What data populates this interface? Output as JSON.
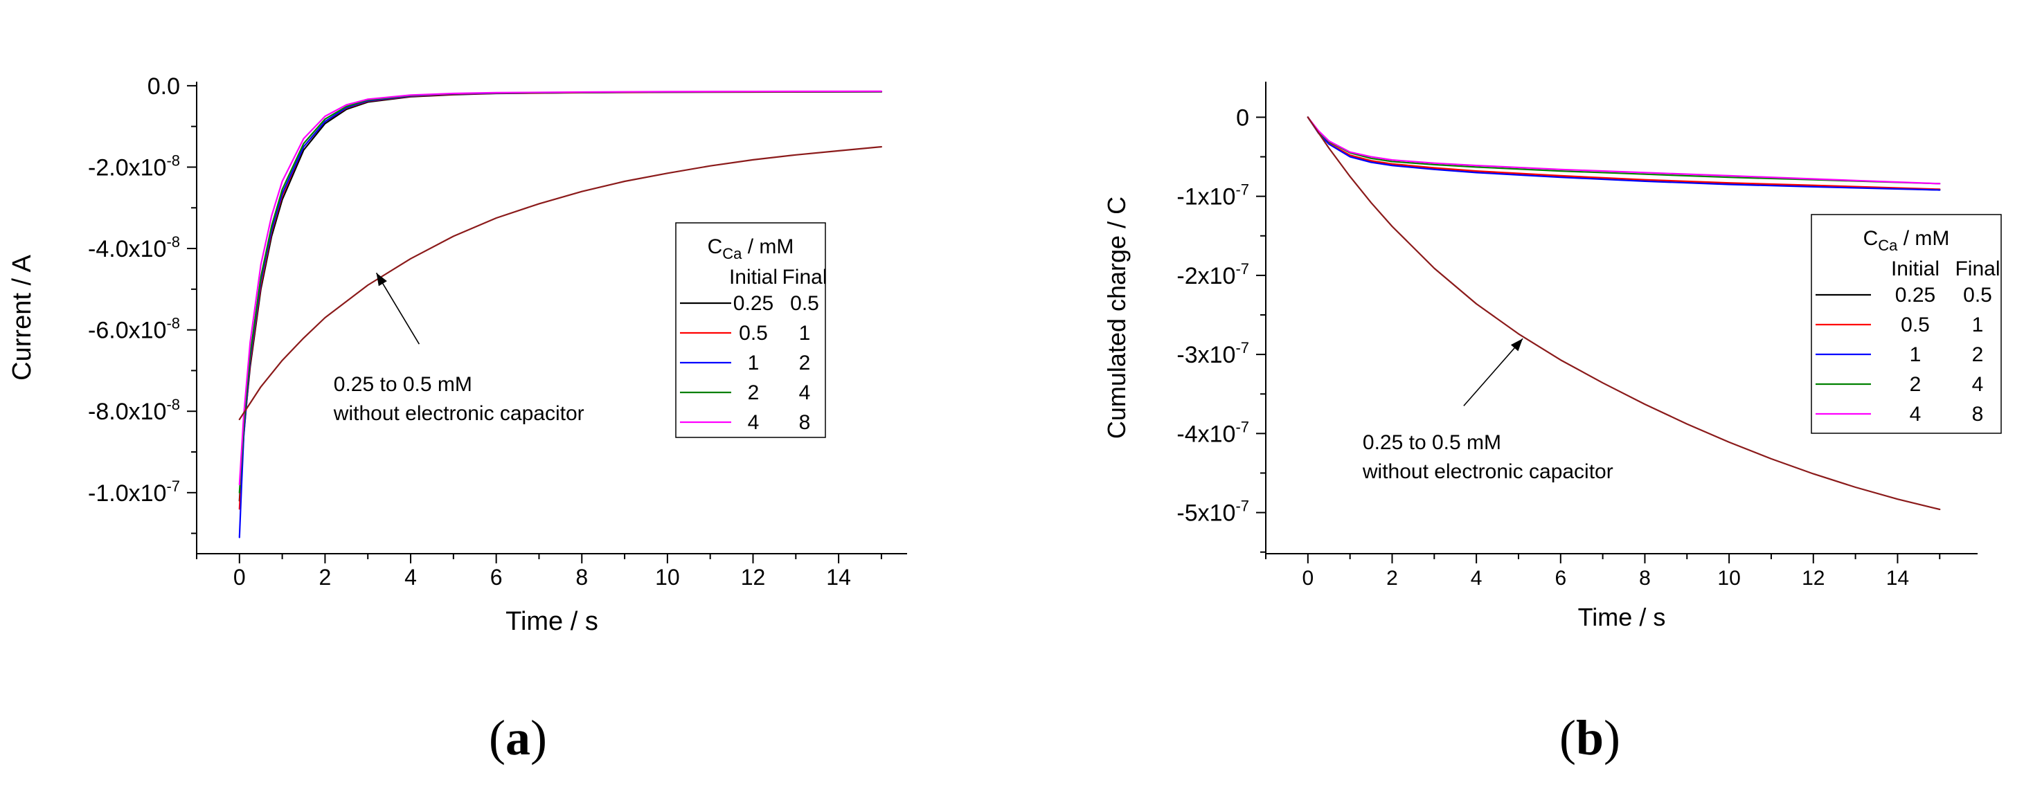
{
  "chart_data": [
    {
      "type": "line",
      "panel_label": "a",
      "xlabel": "Time / s",
      "ylabel": "Current / A",
      "xlim": [
        -1,
        15.6
      ],
      "ylim": [
        -1.15e-07,
        1e-09
      ],
      "x_ticks": [
        0,
        2,
        4,
        6,
        8,
        10,
        12,
        14
      ],
      "x_tick_labels": [
        "0",
        "2",
        "4",
        "6",
        "8",
        "10",
        "12",
        "14"
      ],
      "y_ticks": [
        0,
        -2e-08,
        -4e-08,
        -6e-08,
        -8e-08,
        -1e-07
      ],
      "y_tick_labels": [
        {
          "mantissa": "0.0",
          "exp": ""
        },
        {
          "mantissa": "-2.0x10",
          "exp": "-8"
        },
        {
          "mantissa": "-4.0x10",
          "exp": "-8"
        },
        {
          "mantissa": "-6.0x10",
          "exp": "-8"
        },
        {
          "mantissa": "-8.0x10",
          "exp": "-8"
        },
        {
          "mantissa": "-1.0x10",
          "exp": "-7"
        }
      ],
      "legend": {
        "position": "right",
        "title_main": "C",
        "title_sub": "Ca",
        "title_rest": " / mM",
        "col_initial": "Initial",
        "col_final": "Final",
        "entries": [
          {
            "initial": "0.25",
            "final": "0.5",
            "color": "#000000"
          },
          {
            "initial": "0.5",
            "final": "1",
            "color": "#ff0000"
          },
          {
            "initial": "1",
            "final": "2",
            "color": "#0000ff"
          },
          {
            "initial": "2",
            "final": "4",
            "color": "#008000"
          },
          {
            "initial": "4",
            "final": "8",
            "color": "#ff00ff"
          }
        ]
      },
      "annotation": {
        "line1": "0.25 to 0.5 mM",
        "line2": "without electronic capacitor",
        "arrow_from": [
          4.2,
          -6.35e-08
        ],
        "arrow_to": [
          3.2,
          -4.6e-08
        ],
        "text_at": [
          2.2,
          -7.5e-08
        ]
      },
      "series": [
        {
          "name": "0.25 to 0.5",
          "color": "#000000",
          "x": [
            0.0,
            0.1,
            0.25,
            0.5,
            0.75,
            1.0,
            1.5,
            2.0,
            2.5,
            3.0,
            4.0,
            5.0,
            6.0,
            8.0,
            10.0,
            12.0,
            15.0
          ],
          "y": [
            -1.02e-07,
            -8.5e-08,
            -6.9e-08,
            -5e-08,
            -3.7e-08,
            -2.8e-08,
            -1.58e-08,
            -9.3e-09,
            -5.8e-09,
            -4e-09,
            -2.7e-09,
            -2.2e-09,
            -1.9e-09,
            -1.7e-09,
            -1.6e-09,
            -1.55e-09,
            -1.5e-09
          ]
        },
        {
          "name": "0.5 to 1",
          "color": "#ff0000",
          "x": [
            0.0,
            0.1,
            0.25,
            0.5,
            0.75,
            1.0,
            1.5,
            2.0,
            2.5,
            3.0,
            4.0,
            5.0,
            6.0,
            8.0,
            10.0,
            12.0,
            15.0
          ],
          "y": [
            -1.04e-07,
            -8.6e-08,
            -6.8e-08,
            -4.9e-08,
            -3.6e-08,
            -2.7e-08,
            -1.5e-08,
            -8.8e-09,
            -5.5e-09,
            -3.8e-09,
            -2.6e-09,
            -2.1e-09,
            -1.85e-09,
            -1.65e-09,
            -1.55e-09,
            -1.5e-09,
            -1.45e-09
          ]
        },
        {
          "name": "1 to 2",
          "color": "#0000ff",
          "x": [
            0.0,
            0.05,
            0.1,
            0.25,
            0.5,
            0.75,
            1.0,
            1.5,
            2.0,
            2.5,
            3.0,
            4.0,
            5.0,
            6.0,
            8.0,
            10.0,
            12.0,
            15.0
          ],
          "y": [
            -1.11e-07,
            -9.8e-08,
            -8.6e-08,
            -6.7e-08,
            -4.8e-08,
            -3.55e-08,
            -2.65e-08,
            -1.5e-08,
            -8.8e-09,
            -5.4e-09,
            -3.7e-09,
            -2.5e-09,
            -2e-09,
            -1.8e-09,
            -1.6e-09,
            -1.5e-09,
            -1.45e-09,
            -1.4e-09
          ]
        },
        {
          "name": "2 to 4",
          "color": "#008000",
          "x": [
            0.0,
            0.1,
            0.25,
            0.5,
            0.75,
            1.0,
            1.5,
            2.0,
            2.5,
            3.0,
            4.0,
            5.0,
            6.0,
            8.0,
            10.0,
            12.0,
            15.0
          ],
          "y": [
            -1e-07,
            -8.4e-08,
            -6.6e-08,
            -4.7e-08,
            -3.45e-08,
            -2.55e-08,
            -1.42e-08,
            -8.2e-09,
            -5.1e-09,
            -3.5e-09,
            -2.4e-09,
            -1.95e-09,
            -1.75e-09,
            -1.6e-09,
            -1.5e-09,
            -1.45e-09,
            -1.4e-09
          ]
        },
        {
          "name": "4 to 8",
          "color": "#ff00ff",
          "x": [
            0.0,
            0.1,
            0.25,
            0.5,
            0.75,
            1.0,
            1.5,
            2.0,
            2.5,
            3.0,
            4.0,
            5.0,
            6.0,
            8.0,
            10.0,
            12.0,
            15.0
          ],
          "y": [
            -9.8e-08,
            -8.1e-08,
            -6.3e-08,
            -4.4e-08,
            -3.2e-08,
            -2.35e-08,
            -1.3e-08,
            -7.5e-09,
            -4.7e-09,
            -3.3e-09,
            -2.3e-09,
            -1.9e-09,
            -1.7e-09,
            -1.55e-09,
            -1.45e-09,
            -1.4e-09,
            -1.35e-09
          ]
        },
        {
          "name": "0.25 to 0.5 mM without electronic capacitor",
          "color": "#8b1a1a",
          "x": [
            0.0,
            0.25,
            0.5,
            1.0,
            1.5,
            2.0,
            3.0,
            4.0,
            5.0,
            6.0,
            7.0,
            8.0,
            9.0,
            10.0,
            11.0,
            12.0,
            13.0,
            14.0,
            15.0
          ],
          "y": [
            -8.2e-08,
            -7.8e-08,
            -7.4e-08,
            -6.75e-08,
            -6.2e-08,
            -5.7e-08,
            -4.9e-08,
            -4.25e-08,
            -3.7e-08,
            -3.25e-08,
            -2.9e-08,
            -2.6e-08,
            -2.35e-08,
            -2.15e-08,
            -1.97e-08,
            -1.82e-08,
            -1.7e-08,
            -1.6e-08,
            -1.5e-08
          ]
        }
      ]
    },
    {
      "type": "line",
      "panel_label": "b",
      "xlabel": "Time / s",
      "ylabel": "Cumulated charge / C",
      "xlim": [
        -1,
        15.9
      ],
      "ylim": [
        -5.52e-07,
        4.5e-08
      ],
      "x_ticks": [
        0,
        2,
        4,
        6,
        8,
        10,
        12,
        14
      ],
      "x_tick_labels": [
        "0",
        "2",
        "4",
        "6",
        "8",
        "10",
        "12",
        "14"
      ],
      "y_ticks": [
        0,
        -1e-07,
        -2e-07,
        -3e-07,
        -4e-07,
        -5e-07
      ],
      "y_tick_labels": [
        {
          "mantissa": "0",
          "exp": ""
        },
        {
          "mantissa": "-1x10",
          "exp": "-7"
        },
        {
          "mantissa": "-2x10",
          "exp": "-7"
        },
        {
          "mantissa": "-3x10",
          "exp": "-7"
        },
        {
          "mantissa": "-4x10",
          "exp": "-7"
        },
        {
          "mantissa": "-5x10",
          "exp": "-7"
        }
      ],
      "legend": {
        "position": "right",
        "title_main": "C",
        "title_sub": "Ca",
        "title_rest": " / mM",
        "col_initial": "Initial",
        "col_final": "Final",
        "entries": [
          {
            "initial": "0.25",
            "final": "0.5",
            "color": "#000000"
          },
          {
            "initial": "0.5",
            "final": "1",
            "color": "#ff0000"
          },
          {
            "initial": "1",
            "final": "2",
            "color": "#0000ff"
          },
          {
            "initial": "2",
            "final": "4",
            "color": "#008000"
          },
          {
            "initial": "4",
            "final": "8",
            "color": "#ff00ff"
          }
        ]
      },
      "annotation": {
        "line1": "0.25 to 0.5 mM",
        "line2": "without electronic capacitor",
        "arrow_from": [
          3.7,
          -3.65e-07
        ],
        "arrow_to": [
          5.1,
          -2.8e-07
        ],
        "text_at": [
          1.3,
          -4.2e-07
        ]
      },
      "series": [
        {
          "name": "0.25 to 0.5",
          "color": "#000000",
          "x": [
            0.0,
            0.25,
            0.5,
            1.0,
            1.5,
            2.0,
            3.0,
            4.0,
            6.0,
            8.0,
            10.0,
            12.0,
            15.0
          ],
          "y": [
            0.0,
            -1.9e-08,
            -3.3e-08,
            -4.9e-08,
            -5.6e-08,
            -6e-08,
            -6.5e-08,
            -6.9e-08,
            -7.5e-08,
            -8e-08,
            -8.4e-08,
            -8.7e-08,
            -9.2e-08
          ]
        },
        {
          "name": "0.5 to 1",
          "color": "#ff0000",
          "x": [
            0.0,
            0.25,
            0.5,
            1.0,
            1.5,
            2.0,
            3.0,
            4.0,
            6.0,
            8.0,
            10.0,
            12.0,
            15.0
          ],
          "y": [
            0.0,
            -1.9e-08,
            -3.3e-08,
            -4.8e-08,
            -5.5e-08,
            -5.9e-08,
            -6.4e-08,
            -6.8e-08,
            -7.4e-08,
            -7.9e-08,
            -8.3e-08,
            -8.6e-08,
            -9.1e-08
          ]
        },
        {
          "name": "1 to 2",
          "color": "#0000ff",
          "x": [
            0.0,
            0.25,
            0.5,
            1.0,
            1.5,
            2.0,
            3.0,
            4.0,
            6.0,
            8.0,
            10.0,
            12.0,
            15.0
          ],
          "y": [
            0.0,
            -2e-08,
            -3.4e-08,
            -5e-08,
            -5.7e-08,
            -6.1e-08,
            -6.6e-08,
            -7e-08,
            -7.6e-08,
            -8.1e-08,
            -8.5e-08,
            -8.8e-08,
            -9.2e-08
          ]
        },
        {
          "name": "2 to 4",
          "color": "#008000",
          "x": [
            0.0,
            0.25,
            0.5,
            1.0,
            1.5,
            2.0,
            3.0,
            4.0,
            6.0,
            8.0,
            10.0,
            12.0,
            15.0
          ],
          "y": [
            0.0,
            -1.8e-08,
            -3.1e-08,
            -4.5e-08,
            -5.2e-08,
            -5.6e-08,
            -6e-08,
            -6.3e-08,
            -6.8e-08,
            -7.2e-08,
            -7.6e-08,
            -7.9e-08,
            -8.4e-08
          ]
        },
        {
          "name": "4 to 8",
          "color": "#ff00ff",
          "x": [
            0.0,
            0.25,
            0.5,
            1.0,
            1.5,
            2.0,
            3.0,
            4.0,
            6.0,
            8.0,
            10.0,
            12.0,
            15.0
          ],
          "y": [
            0.0,
            -1.7e-08,
            -3e-08,
            -4.4e-08,
            -5e-08,
            -5.4e-08,
            -5.8e-08,
            -6.1e-08,
            -6.6e-08,
            -7e-08,
            -7.4e-08,
            -7.8e-08,
            -8.4e-08
          ]
        },
        {
          "name": "0.25 to 0.5 mM without electronic capacitor",
          "color": "#8b1a1a",
          "x": [
            0.0,
            0.5,
            1.0,
            1.5,
            2.0,
            3.0,
            4.0,
            5.0,
            6.0,
            7.0,
            8.0,
            9.0,
            10.0,
            11.0,
            12.0,
            13.0,
            14.0,
            15.0
          ],
          "y": [
            0.0,
            -3.9e-08,
            -7.5e-08,
            -1.08e-07,
            -1.38e-07,
            -1.91e-07,
            -2.36e-07,
            -2.74e-07,
            -3.07e-07,
            -3.36e-07,
            -3.63e-07,
            -3.88e-07,
            -4.11e-07,
            -4.32e-07,
            -4.51e-07,
            -4.68e-07,
            -4.83e-07,
            -4.96e-07
          ]
        }
      ]
    }
  ]
}
